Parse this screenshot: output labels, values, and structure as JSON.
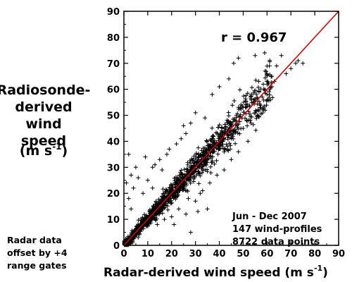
{
  "chart_data": {
    "type": "scatter",
    "title": "",
    "xlabel": "Radar-derived wind speed (m s",
    "xlabel_sup": "-1",
    "xlabel_end": ")",
    "ylabel_lines": [
      "Radiosonde-",
      "derived",
      "wind",
      "speed",
      "(m s"
    ],
    "ylabel_sup": "-1",
    "ylabel_end": ")",
    "xlim": [
      0,
      90
    ],
    "ylim": [
      0,
      90
    ],
    "xticks": [
      0,
      10,
      20,
      30,
      40,
      50,
      60,
      70,
      80,
      90
    ],
    "yticks": [
      0,
      10,
      20,
      30,
      40,
      50,
      60,
      70,
      80,
      90
    ],
    "grid": false,
    "marker": "+",
    "marker_color": "#000000",
    "fit_line": {
      "x": [
        0,
        90
      ],
      "y": [
        0,
        90
      ],
      "color": "#d40000"
    },
    "annotations": {
      "correlation": "r = 0.967",
      "period": "Jun - Dec 2007",
      "profiles": "147 wind-profiles",
      "points": "8722 data points"
    },
    "note_lines": [
      "Radar data",
      "offset by +4",
      "range gates"
    ],
    "outliers": [
      [
        2,
        35
      ],
      [
        5,
        30
      ],
      [
        3,
        27
      ],
      [
        6,
        26
      ],
      [
        9,
        34
      ],
      [
        12,
        22
      ],
      [
        13,
        31
      ],
      [
        16,
        29
      ],
      [
        18,
        35
      ],
      [
        22,
        39
      ],
      [
        24,
        41
      ],
      [
        26,
        43
      ],
      [
        25,
        46
      ],
      [
        28,
        47
      ],
      [
        30,
        51
      ],
      [
        34,
        49
      ],
      [
        37,
        58
      ],
      [
        40,
        61
      ],
      [
        44,
        64
      ],
      [
        46,
        70
      ],
      [
        48,
        72
      ],
      [
        55,
        73
      ],
      [
        59,
        74
      ],
      [
        62,
        65
      ],
      [
        63,
        63
      ],
      [
        64,
        69
      ],
      [
        73,
        71
      ],
      [
        75,
        70
      ],
      [
        66,
        73
      ],
      [
        61,
        69
      ],
      [
        20,
        11
      ],
      [
        23,
        14
      ],
      [
        27,
        18
      ],
      [
        30,
        17
      ],
      [
        33,
        21
      ],
      [
        36,
        24
      ],
      [
        39,
        27
      ],
      [
        42,
        29
      ],
      [
        45,
        33
      ],
      [
        48,
        36
      ],
      [
        52,
        40
      ],
      [
        35,
        14
      ],
      [
        32,
        20
      ],
      [
        28,
        5
      ],
      [
        12,
        30
      ],
      [
        15,
        33
      ],
      [
        19,
        37
      ],
      [
        38,
        38
      ],
      [
        41,
        44
      ],
      [
        50,
        45
      ],
      [
        53,
        48
      ],
      [
        56,
        50
      ],
      [
        58,
        57
      ],
      [
        60,
        58
      ],
      [
        62,
        61
      ],
      [
        68,
        66
      ],
      [
        70,
        68
      ],
      [
        72,
        70
      ],
      [
        8,
        20
      ],
      [
        10,
        25
      ],
      [
        14,
        8
      ],
      [
        17,
        10
      ],
      [
        21,
        8
      ],
      [
        26,
        12
      ],
      [
        31,
        13
      ],
      [
        2,
        18
      ],
      [
        4,
        22
      ],
      [
        1,
        24
      ],
      [
        3,
        14
      ],
      [
        6,
        3
      ]
    ]
  }
}
